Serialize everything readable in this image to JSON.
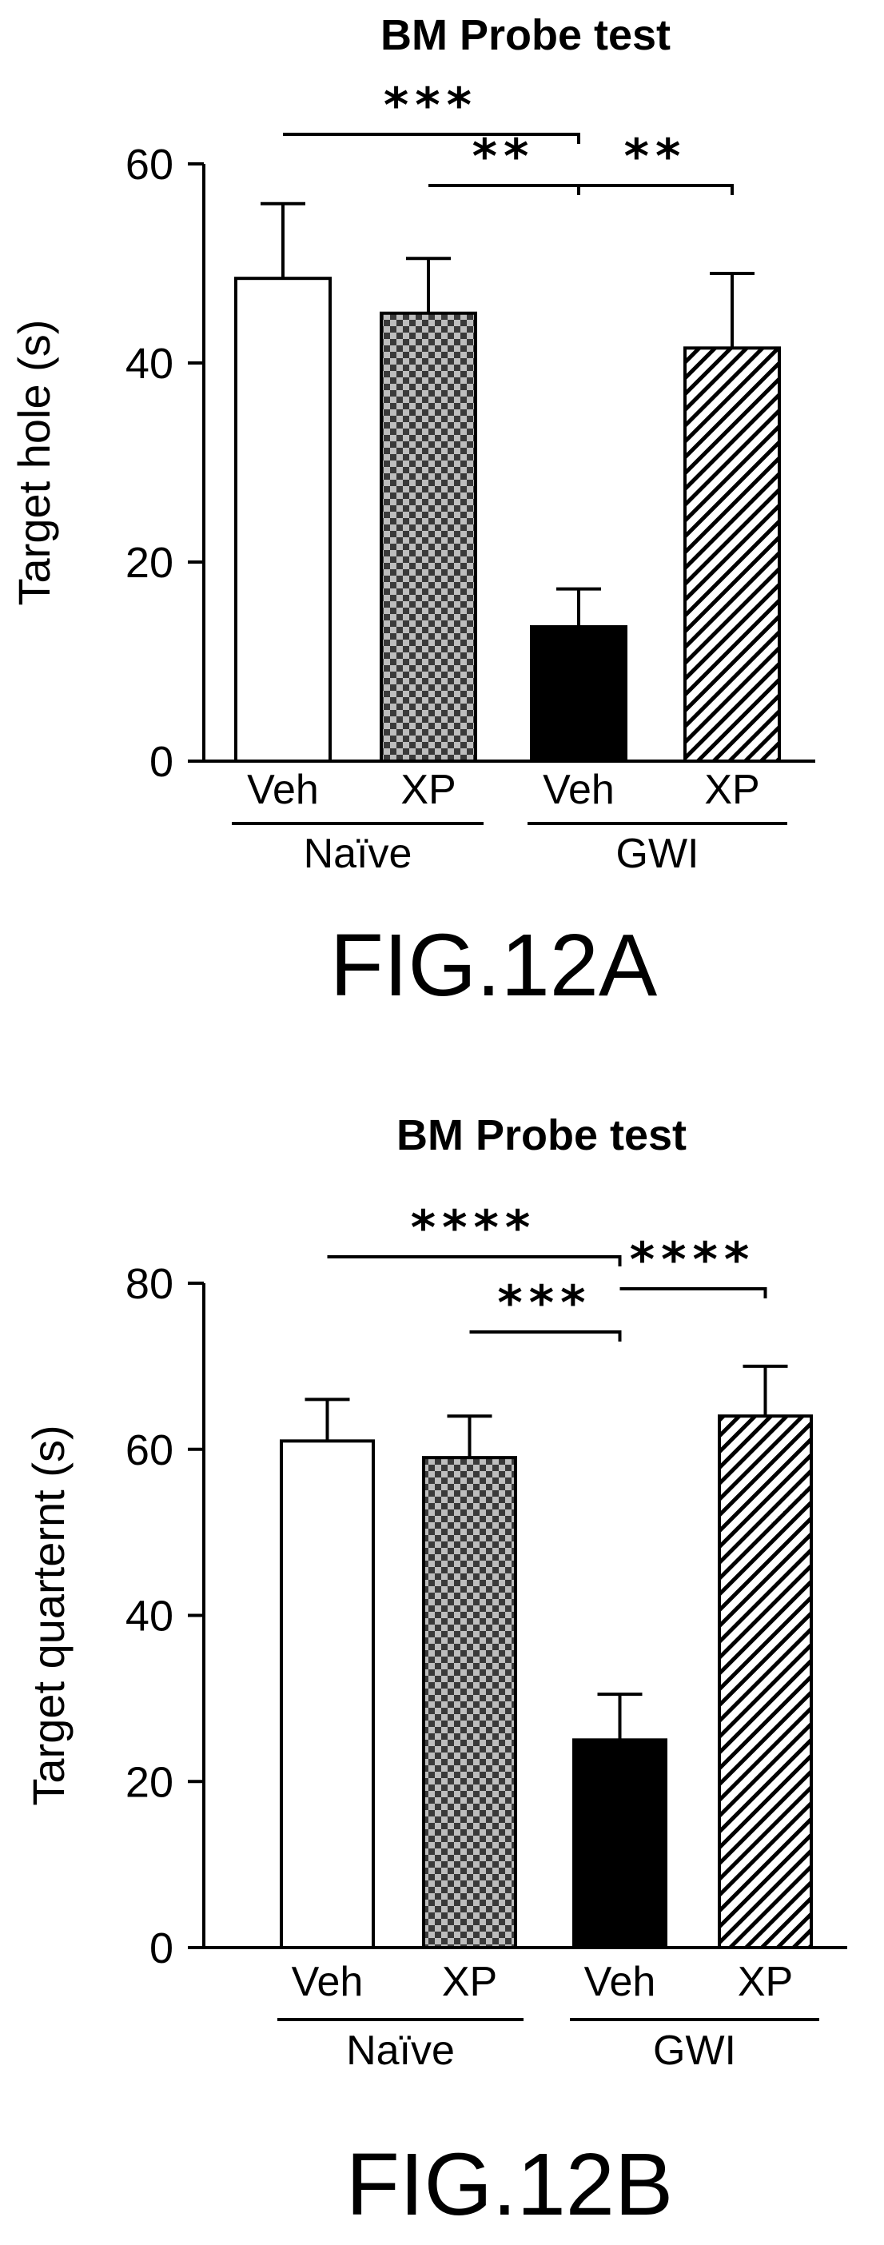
{
  "chart_data": [
    {
      "type": "bar",
      "title": "BM Probe test",
      "ylabel": "Target hole (s)",
      "xlabel": "",
      "ylim": [
        0,
        60
      ],
      "yticks": [
        0,
        20,
        40,
        60
      ],
      "categories": [
        "Veh",
        "XP",
        "Veh",
        "XP"
      ],
      "groups": [
        {
          "label": "Naïve",
          "members": [
            0,
            1
          ]
        },
        {
          "label": "GWI",
          "members": [
            2,
            3
          ]
        }
      ],
      "values": [
        48.5,
        45,
        13.5,
        41.5
      ],
      "errors": [
        7.5,
        5.5,
        3.8,
        7.5
      ],
      "fills": [
        "open",
        "checker",
        "solid",
        "hatch"
      ],
      "significance": [
        {
          "from": 0,
          "to": 2,
          "label": "***"
        },
        {
          "from": 1,
          "to": 2,
          "label": "**"
        },
        {
          "from": 2,
          "to": 3,
          "label": "**"
        }
      ],
      "figure_label": "FIG.12A"
    },
    {
      "type": "bar",
      "title": "BM Probe test",
      "ylabel": "Target quarternt (s)",
      "xlabel": "",
      "ylim": [
        0,
        80
      ],
      "yticks": [
        0,
        20,
        40,
        60,
        80
      ],
      "categories": [
        "Veh",
        "XP",
        "Veh",
        "XP"
      ],
      "groups": [
        {
          "label": "Naïve",
          "members": [
            0,
            1
          ]
        },
        {
          "label": "GWI",
          "members": [
            2,
            3
          ]
        }
      ],
      "values": [
        61,
        59,
        25,
        64
      ],
      "errors": [
        5,
        5,
        5.5,
        6
      ],
      "fills": [
        "open",
        "checker",
        "solid",
        "hatch"
      ],
      "significance": [
        {
          "from": 0,
          "to": 2,
          "label": "****"
        },
        {
          "from": 1,
          "to": 2,
          "label": "***"
        },
        {
          "from": 2,
          "to": 3,
          "label": "****"
        }
      ],
      "figure_label": "FIG.12B"
    }
  ],
  "colors": {
    "ink": "#000000",
    "checker_dark": "#3a3a3a",
    "checker_light": "#bdbdbd"
  }
}
